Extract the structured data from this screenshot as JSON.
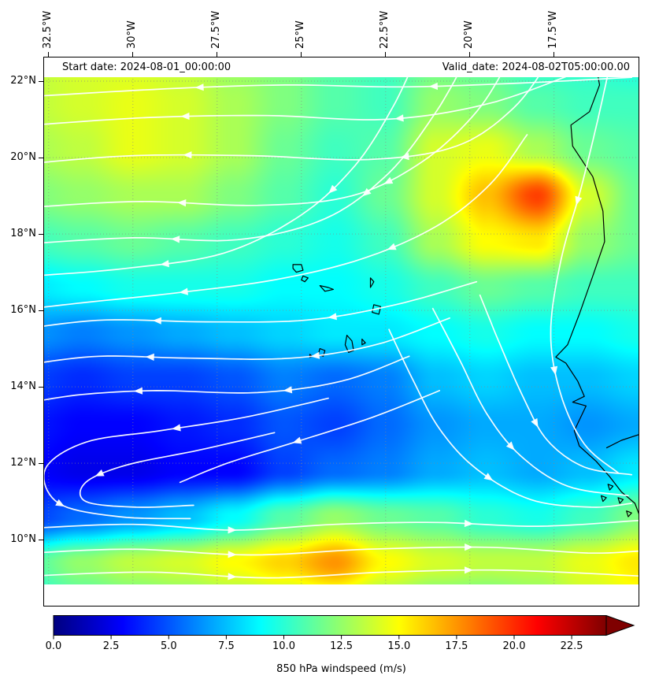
{
  "header": {
    "start_date": "Start date: 2024-08-01_00:00:00",
    "valid_date": "Valid_date: 2024-08-02T05:00:00.00"
  },
  "axes": {
    "lon_labels": [
      "32.5°W",
      "30°W",
      "27.5°W",
      "25°W",
      "22.5°W",
      "20°W",
      "17.5°W"
    ],
    "lat_labels": [
      "22°N",
      "20°N",
      "18°N",
      "16°N",
      "14°N",
      "12°N",
      "10°N"
    ]
  },
  "colorbar": {
    "title": "850 hPa windspeed (m/s)",
    "tick_labels": [
      "0.0",
      "2.5",
      "5.0",
      "7.5",
      "10.0",
      "12.5",
      "15.0",
      "17.5",
      "20.0",
      "22.5"
    ],
    "vmin": 0,
    "vmax": 24,
    "extend": "max"
  },
  "chart_data": {
    "type": "heatmap",
    "title": "850 hPa windspeed (m/s)",
    "colormap": "jet",
    "extent": {
      "lon_min": -32.66,
      "lon_max": -14.97,
      "lat_min": 8.25,
      "lat_max": 22.64
    },
    "grid_lons": [
      -33,
      -31.5,
      -30,
      -28.5,
      -27,
      -25.5,
      -24,
      -22.5,
      -21,
      -19.5,
      -18,
      -16.5,
      -15
    ],
    "grid_lats": [
      22.6,
      21.4,
      20.2,
      19.0,
      17.8,
      16.6,
      15.4,
      14.2,
      13.0,
      11.8,
      10.6,
      9.4,
      8.2
    ],
    "windspeed": [
      [
        13.5,
        14,
        14,
        13.5,
        12.5,
        12,
        11,
        10.5,
        11.5,
        11,
        10,
        10,
        9.5
      ],
      [
        13.5,
        14,
        14.5,
        14,
        13,
        12,
        11,
        10.5,
        12.5,
        12,
        11,
        10.5,
        10.5
      ],
      [
        13,
        13.5,
        14.5,
        14,
        13,
        11.5,
        10.5,
        11,
        14,
        14.5,
        13,
        11.5,
        11
      ],
      [
        12,
        12.5,
        13,
        13,
        12,
        11,
        10,
        11.5,
        14,
        16.5,
        19.5,
        14,
        11.5
      ],
      [
        10.5,
        11,
        11.5,
        11,
        10.5,
        10,
        9.5,
        10.5,
        13,
        15,
        15.5,
        12.5,
        11.5
      ],
      [
        8.5,
        9,
        9.5,
        9.5,
        9.5,
        9,
        9,
        9.5,
        10.5,
        11.5,
        11,
        10.5,
        10.5
      ],
      [
        6.5,
        6,
        6.5,
        7,
        7.5,
        8,
        8.5,
        8.5,
        9,
        9.5,
        9,
        9,
        9.5
      ],
      [
        4.5,
        4,
        4.5,
        4.5,
        5,
        6,
        5.5,
        6,
        7.5,
        8,
        7.5,
        7.5,
        8
      ],
      [
        3.5,
        3,
        3,
        3.5,
        4,
        5,
        4.5,
        5.5,
        6.5,
        7,
        7,
        6.5,
        7
      ],
      [
        3,
        2.5,
        2.5,
        3,
        3,
        4.5,
        5.5,
        6,
        7,
        7.5,
        7,
        7.5,
        8.5
      ],
      [
        4.5,
        5.5,
        6.5,
        7.5,
        9,
        11,
        12.5,
        11.5,
        11,
        10,
        9.5,
        10.5,
        12
      ],
      [
        11,
        12.5,
        13.5,
        14,
        15,
        16,
        17.5,
        15,
        14,
        13.5,
        13.5,
        14.5,
        15.5
      ],
      [
        9.5,
        10.5,
        11,
        11.5,
        12,
        12.5,
        13,
        12,
        11,
        11,
        12,
        13.5,
        14.5
      ]
    ],
    "grid_lines": {
      "lons": [
        -32.5,
        -30,
        -27.5,
        -25,
        -22.5,
        -20,
        -17.5
      ],
      "lats": [
        22,
        20,
        18,
        16,
        14,
        12,
        10
      ]
    },
    "streamlines": [
      [
        [
          -15.2,
          22.1
        ],
        [
          -18.5,
          21.95
        ],
        [
          -22,
          21.85
        ],
        [
          -25.5,
          21.9
        ],
        [
          -29,
          21.8
        ],
        [
          -33,
          21.6
        ]
      ],
      [
        [
          -16.9,
          22.2
        ],
        [
          -19.5,
          21.4
        ],
        [
          -22.5,
          21.0
        ],
        [
          -26,
          21.1
        ],
        [
          -29.5,
          21.05
        ],
        [
          -33,
          20.85
        ]
      ],
      [
        [
          -17.6,
          22.6
        ],
        [
          -18.7,
          21.3
        ],
        [
          -20.4,
          20.3
        ],
        [
          -23,
          19.95
        ],
        [
          -26.5,
          20.05
        ],
        [
          -30,
          20.05
        ],
        [
          -33,
          19.85
        ]
      ],
      [
        [
          -18.8,
          22.6
        ],
        [
          -19.8,
          21.2
        ],
        [
          -21.4,
          19.9
        ],
        [
          -23.5,
          19.0
        ],
        [
          -26.3,
          18.75
        ],
        [
          -29.8,
          18.85
        ],
        [
          -33,
          18.7
        ]
      ],
      [
        [
          -20.1,
          22.6
        ],
        [
          -21.0,
          21.2
        ],
        [
          -22.4,
          19.6
        ],
        [
          -24.3,
          18.4
        ],
        [
          -26.9,
          17.85
        ],
        [
          -30,
          17.9
        ],
        [
          -33,
          17.75
        ]
      ],
      [
        [
          -21.6,
          22.6
        ],
        [
          -22.3,
          21.3
        ],
        [
          -23.4,
          19.8
        ],
        [
          -25.0,
          18.5
        ],
        [
          -27.3,
          17.5
        ],
        [
          -30.2,
          17.1
        ],
        [
          -33,
          16.9
        ]
      ],
      [
        [
          -18.3,
          20.6
        ],
        [
          -19.4,
          19.3
        ],
        [
          -21.0,
          18.2
        ],
        [
          -23.2,
          17.35
        ],
        [
          -25.8,
          16.8
        ],
        [
          -28.8,
          16.45
        ],
        [
          -31.5,
          16.2
        ],
        [
          -33,
          16.05
        ]
      ],
      [
        [
          -15.8,
          22.6
        ],
        [
          -16.2,
          21.0
        ],
        [
          -16.7,
          19.2
        ],
        [
          -17.3,
          17.3
        ],
        [
          -17.6,
          15.4
        ],
        [
          -17.3,
          13.8
        ],
        [
          -16.6,
          12.5
        ],
        [
          -15.6,
          11.75
        ]
      ],
      [
        [
          -19.8,
          16.75
        ],
        [
          -22.2,
          16.15
        ],
        [
          -24.8,
          15.75
        ],
        [
          -27.8,
          15.7
        ],
        [
          -30.8,
          15.75
        ],
        [
          -33,
          15.55
        ]
      ],
      [
        [
          -20.6,
          15.8
        ],
        [
          -22.8,
          15.1
        ],
        [
          -25.3,
          14.75
        ],
        [
          -28.3,
          14.75
        ],
        [
          -31,
          14.8
        ],
        [
          -33,
          14.6
        ]
      ],
      [
        [
          -21.8,
          14.8
        ],
        [
          -23.8,
          14.15
        ],
        [
          -26.3,
          13.85
        ],
        [
          -29.3,
          13.9
        ],
        [
          -31.5,
          13.8
        ],
        [
          -33,
          13.6
        ]
      ],
      [
        [
          -24.2,
          13.7
        ],
        [
          -26.7,
          13.2
        ],
        [
          -29.2,
          12.85
        ],
        [
          -31.4,
          12.55
        ],
        [
          -32.6,
          11.85
        ],
        [
          -32.2,
          10.95
        ],
        [
          -30.4,
          10.6
        ],
        [
          -28.3,
          10.55
        ]
      ],
      [
        [
          -25.8,
          12.8
        ],
        [
          -28,
          12.35
        ],
        [
          -30.2,
          11.95
        ],
        [
          -31.4,
          11.5
        ],
        [
          -31.4,
          11.0
        ],
        [
          -29.9,
          10.85
        ],
        [
          -28.2,
          10.9
        ]
      ],
      [
        [
          -20.9,
          13.9
        ],
        [
          -22.9,
          13.2
        ],
        [
          -25.2,
          12.55
        ],
        [
          -27.2,
          12.0
        ],
        [
          -28.6,
          11.5
        ]
      ],
      [
        [
          -33,
          10.3
        ],
        [
          -30,
          10.4
        ],
        [
          -27,
          10.25
        ],
        [
          -24,
          10.4
        ],
        [
          -21,
          10.45
        ],
        [
          -18,
          10.35
        ],
        [
          -15,
          10.5
        ]
      ],
      [
        [
          -33,
          9.65
        ],
        [
          -30,
          9.75
        ],
        [
          -26.5,
          9.6
        ],
        [
          -23,
          9.75
        ],
        [
          -19.5,
          9.8
        ],
        [
          -16.5,
          9.65
        ],
        [
          -15,
          9.7
        ]
      ],
      [
        [
          -33,
          9.05
        ],
        [
          -29.5,
          9.15
        ],
        [
          -26,
          9.0
        ],
        [
          -22.5,
          9.15
        ],
        [
          -19,
          9.2
        ],
        [
          -15,
          9.05
        ]
      ],
      [
        [
          -19.7,
          16.4
        ],
        [
          -19.1,
          15.1
        ],
        [
          -18.4,
          13.7
        ],
        [
          -17.7,
          12.6
        ],
        [
          -16.6,
          11.9
        ],
        [
          -15.2,
          11.7
        ]
      ],
      [
        [
          -21.1,
          16.05
        ],
        [
          -20.3,
          14.7
        ],
        [
          -19.5,
          13.3
        ],
        [
          -18.5,
          12.2
        ],
        [
          -17.1,
          11.4
        ],
        [
          -15.3,
          11.15
        ]
      ],
      [
        [
          -22.4,
          15.5
        ],
        [
          -21.7,
          14.2
        ],
        [
          -20.9,
          12.9
        ],
        [
          -19.8,
          11.85
        ],
        [
          -18.2,
          11.05
        ],
        [
          -16.4,
          10.85
        ],
        [
          -15.2,
          10.95
        ]
      ]
    ],
    "coastlines": [
      {
        "closed": false,
        "points": [
          [
            -16.3,
            22.65
          ],
          [
            -16.15,
            21.9
          ],
          [
            -16.45,
            21.2
          ],
          [
            -17.0,
            20.85
          ],
          [
            -16.95,
            20.3
          ],
          [
            -16.35,
            19.5
          ],
          [
            -16.05,
            18.6
          ],
          [
            -16.0,
            17.8
          ],
          [
            -16.35,
            16.9
          ],
          [
            -16.75,
            15.9
          ],
          [
            -17.1,
            15.1
          ],
          [
            -17.45,
            14.78
          ],
          [
            -17.15,
            14.62
          ],
          [
            -16.8,
            14.15
          ],
          [
            -16.6,
            13.75
          ],
          [
            -16.95,
            13.6
          ],
          [
            -16.55,
            13.5
          ],
          [
            -16.9,
            12.85
          ],
          [
            -16.75,
            12.45
          ],
          [
            -16.25,
            12.05
          ],
          [
            -15.85,
            11.65
          ],
          [
            -15.5,
            11.25
          ],
          [
            -15.1,
            10.95
          ],
          [
            -14.95,
            10.6
          ]
        ]
      },
      {
        "closed": false,
        "points": [
          [
            -14.98,
            12.75
          ],
          [
            -15.5,
            12.6
          ],
          [
            -15.95,
            12.4
          ]
        ]
      },
      {
        "closed": true,
        "points": [
          [
            -25.25,
            17.2
          ],
          [
            -25.0,
            17.2
          ],
          [
            -24.95,
            17.05
          ],
          [
            -25.15,
            17.0
          ],
          [
            -25.25,
            17.1
          ]
        ]
      },
      {
        "closed": true,
        "points": [
          [
            -24.95,
            16.9
          ],
          [
            -24.8,
            16.85
          ],
          [
            -24.9,
            16.75
          ],
          [
            -25.0,
            16.8
          ]
        ]
      },
      {
        "closed": true,
        "points": [
          [
            -24.45,
            16.65
          ],
          [
            -24.2,
            16.6
          ],
          [
            -24.05,
            16.55
          ],
          [
            -24.3,
            16.5
          ]
        ]
      },
      {
        "closed": true,
        "points": [
          [
            -22.95,
            16.85
          ],
          [
            -22.85,
            16.75
          ],
          [
            -22.95,
            16.6
          ]
        ]
      },
      {
        "closed": true,
        "points": [
          [
            -22.85,
            16.15
          ],
          [
            -22.65,
            16.1
          ],
          [
            -22.7,
            15.9
          ],
          [
            -22.9,
            15.95
          ]
        ]
      },
      {
        "closed": true,
        "points": [
          [
            -23.2,
            15.25
          ],
          [
            -23.1,
            15.15
          ],
          [
            -23.2,
            15.1
          ]
        ]
      },
      {
        "closed": true,
        "points": [
          [
            -23.65,
            15.35
          ],
          [
            -23.5,
            15.2
          ],
          [
            -23.45,
            14.95
          ],
          [
            -23.6,
            14.9
          ],
          [
            -23.7,
            15.1
          ]
        ]
      },
      {
        "closed": true,
        "points": [
          [
            -24.45,
            15.0
          ],
          [
            -24.3,
            14.95
          ],
          [
            -24.35,
            14.8
          ],
          [
            -24.5,
            14.85
          ]
        ]
      },
      {
        "closed": true,
        "points": [
          [
            -24.75,
            14.85
          ],
          [
            -24.68,
            14.8
          ],
          [
            -24.75,
            14.77
          ]
        ]
      },
      {
        "closed": true,
        "points": [
          [
            -15.9,
            11.45
          ],
          [
            -15.75,
            11.4
          ],
          [
            -15.85,
            11.3
          ]
        ]
      },
      {
        "closed": true,
        "points": [
          [
            -16.1,
            11.15
          ],
          [
            -15.95,
            11.1
          ],
          [
            -16.05,
            11.0
          ]
        ]
      },
      {
        "closed": true,
        "points": [
          [
            -15.6,
            11.1
          ],
          [
            -15.45,
            11.05
          ],
          [
            -15.55,
            10.95
          ]
        ]
      },
      {
        "closed": true,
        "points": [
          [
            -15.35,
            10.75
          ],
          [
            -15.2,
            10.7
          ],
          [
            -15.3,
            10.6
          ]
        ]
      }
    ]
  }
}
